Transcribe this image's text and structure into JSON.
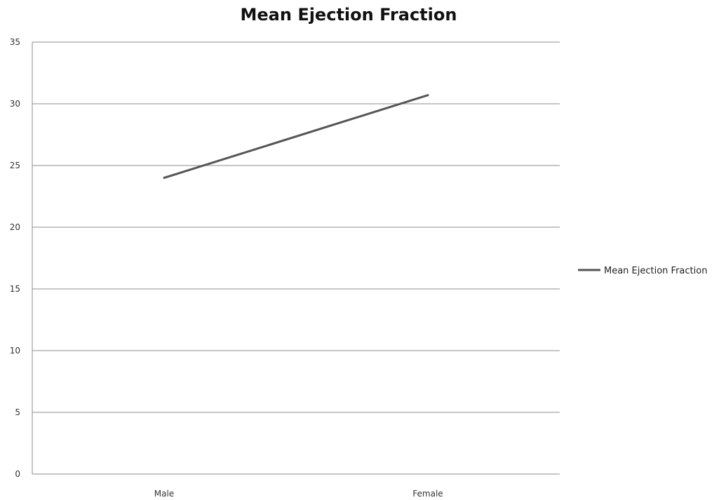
{
  "chart_data": {
    "type": "line",
    "title": "Mean Ejection Fraction",
    "categories": [
      "Male",
      "Female"
    ],
    "series": [
      {
        "name": "Mean Ejection Fraction",
        "values": [
          24.0,
          30.7
        ],
        "color": "#555555"
      }
    ],
    "xlabel": "",
    "ylabel": "",
    "ylim": [
      0,
      35
    ],
    "yticks": [
      0,
      5,
      10,
      15,
      20,
      25,
      30,
      35
    ],
    "grid": true,
    "legend_position": "right"
  }
}
